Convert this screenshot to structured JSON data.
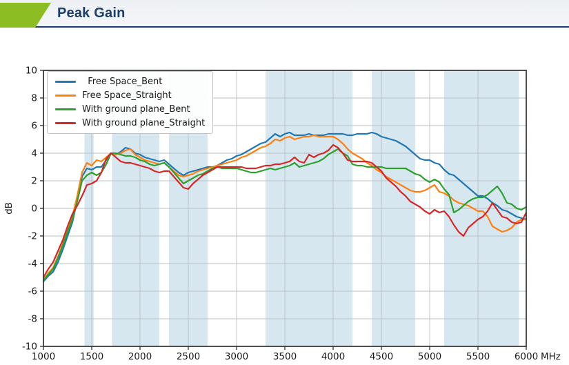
{
  "header": {
    "title": "Peak Gain",
    "accent_color": "#8cbe23",
    "title_color": "#1c3e6e"
  },
  "chart_data": {
    "type": "line",
    "title": "Peak Gain",
    "xlabel": "",
    "ylabel": "dB",
    "x_unit": "MHz",
    "xlim": [
      1000,
      6000
    ],
    "ylim": [
      -10,
      10
    ],
    "x_ticks": [
      1000,
      1500,
      2000,
      2500,
      3000,
      3500,
      4000,
      4500,
      5000,
      5500,
      6000
    ],
    "y_ticks": [
      -10,
      -8,
      -6,
      -4,
      -2,
      0,
      2,
      4,
      6,
      8,
      10
    ],
    "grid": true,
    "legend_position": "upper-left",
    "band_color": "#d7e7f0",
    "grid_color": "#b8bfc4",
    "frame_color": "#3a3a3a",
    "text_color": "#1a1a1a",
    "shaded_bands_mhz": [
      [
        1425,
        1520
      ],
      [
        1710,
        2200
      ],
      [
        2300,
        2700
      ],
      [
        3300,
        4200
      ],
      [
        4400,
        4850
      ],
      [
        5150,
        5925
      ]
    ],
    "x_start": 1000,
    "x_step": 50,
    "series": [
      {
        "name": "  Free Space_Bent",
        "color": "#1f77b4",
        "values": [
          -5.3,
          -4.9,
          -4.6,
          -3.9,
          -3.0,
          -2.0,
          -1.0,
          0.6,
          2.3,
          2.9,
          2.8,
          3.0,
          3.0,
          3.5,
          4.0,
          3.9,
          4.1,
          4.4,
          4.3,
          4.0,
          3.9,
          3.7,
          3.6,
          3.5,
          3.4,
          3.5,
          3.2,
          2.9,
          2.6,
          2.4,
          2.6,
          2.7,
          2.8,
          2.9,
          3.0,
          3.0,
          3.1,
          3.3,
          3.5,
          3.6,
          3.8,
          3.9,
          4.1,
          4.3,
          4.5,
          4.7,
          4.8,
          5.1,
          5.4,
          5.2,
          5.4,
          5.5,
          5.3,
          5.3,
          5.3,
          5.4,
          5.3,
          5.3,
          5.3,
          5.4,
          5.4,
          5.4,
          5.4,
          5.3,
          5.3,
          5.4,
          5.4,
          5.4,
          5.5,
          5.4,
          5.2,
          5.1,
          5.0,
          4.9,
          4.7,
          4.5,
          4.2,
          3.9,
          3.6,
          3.5,
          3.5,
          3.3,
          3.2,
          2.8,
          2.5,
          2.4,
          2.1,
          1.8,
          1.5,
          1.2,
          0.9,
          0.9,
          0.7,
          0.4,
          0.2,
          -0.1,
          -0.2,
          -0.4,
          -0.6,
          -0.7,
          -0.8
        ]
      },
      {
        "name": "Free Space_Straight",
        "color": "#ff7f0e",
        "values": [
          -5.2,
          -4.7,
          -4.3,
          -3.5,
          -2.6,
          -1.6,
          -0.6,
          0.9,
          2.6,
          3.3,
          3.1,
          3.5,
          3.4,
          3.7,
          4.0,
          3.9,
          4.0,
          4.2,
          4.3,
          3.9,
          3.7,
          3.5,
          3.4,
          3.3,
          3.2,
          3.3,
          3.0,
          2.7,
          2.4,
          2.3,
          2.4,
          2.5,
          2.7,
          2.8,
          2.9,
          3.0,
          3.1,
          3.2,
          3.3,
          3.4,
          3.5,
          3.7,
          3.8,
          4.0,
          4.2,
          4.4,
          4.5,
          4.7,
          5.0,
          4.9,
          5.1,
          5.2,
          5.0,
          5.1,
          5.2,
          5.2,
          5.3,
          5.2,
          5.2,
          5.2,
          5.2,
          5.0,
          4.7,
          4.3,
          4.0,
          3.8,
          3.6,
          3.3,
          3.1,
          2.8,
          2.6,
          2.3,
          2.1,
          1.9,
          1.7,
          1.5,
          1.3,
          1.2,
          1.2,
          1.3,
          1.5,
          1.7,
          1.2,
          1.1,
          0.9,
          0.6,
          0.4,
          0.3,
          0.2,
          0.0,
          -0.2,
          -0.2,
          -0.6,
          -1.3,
          -1.5,
          -1.7,
          -1.6,
          -1.4,
          -1.0,
          -0.8,
          -0.8
        ]
      },
      {
        "name": "With ground plane_Bent",
        "color": "#2ca02c",
        "values": [
          -5.2,
          -4.8,
          -4.4,
          -3.6,
          -2.7,
          -1.7,
          -0.8,
          0.5,
          2.0,
          2.4,
          2.6,
          2.4,
          2.6,
          3.2,
          4.0,
          4.0,
          3.9,
          3.8,
          3.8,
          3.7,
          3.5,
          3.4,
          3.2,
          3.1,
          3.2,
          3.3,
          3.0,
          2.6,
          2.2,
          1.8,
          2.0,
          2.2,
          2.4,
          2.5,
          2.7,
          2.9,
          3.0,
          2.9,
          2.9,
          2.9,
          2.9,
          2.8,
          2.7,
          2.6,
          2.6,
          2.7,
          2.8,
          2.9,
          2.8,
          2.9,
          3.0,
          3.1,
          3.3,
          3.0,
          3.1,
          3.2,
          3.3,
          3.4,
          3.6,
          3.9,
          4.1,
          4.3,
          4.0,
          3.8,
          3.2,
          3.1,
          3.1,
          3.0,
          3.0,
          3.0,
          3.0,
          2.9,
          2.9,
          2.9,
          2.9,
          2.9,
          2.7,
          2.5,
          2.4,
          2.1,
          1.9,
          2.1,
          1.9,
          1.4,
          1.0,
          -0.3,
          -0.1,
          0.2,
          0.5,
          0.7,
          0.8,
          0.8,
          1.0,
          1.3,
          1.6,
          1.1,
          0.4,
          0.3,
          0.0,
          -0.1,
          0.1
        ]
      },
      {
        "name": "With ground plane_Straight",
        "color": "#d62728",
        "values": [
          -5.0,
          -4.4,
          -3.9,
          -3.1,
          -2.3,
          -1.3,
          -0.4,
          0.2,
          0.9,
          1.7,
          1.8,
          2.0,
          2.6,
          3.6,
          4.0,
          3.7,
          3.4,
          3.3,
          3.3,
          3.2,
          3.1,
          3.0,
          2.9,
          2.7,
          2.6,
          2.7,
          2.7,
          2.3,
          1.9,
          1.5,
          1.4,
          1.8,
          2.1,
          2.4,
          2.6,
          2.8,
          3.0,
          3.0,
          3.0,
          3.0,
          3.0,
          3.0,
          2.9,
          2.9,
          2.9,
          3.0,
          3.1,
          3.1,
          3.2,
          3.2,
          3.3,
          3.4,
          3.7,
          3.4,
          3.3,
          3.9,
          3.7,
          3.9,
          4.0,
          4.2,
          4.6,
          4.4,
          4.0,
          3.5,
          3.4,
          3.4,
          3.4,
          3.4,
          3.3,
          3.0,
          2.7,
          2.2,
          1.9,
          1.6,
          1.2,
          0.9,
          0.5,
          0.3,
          0.1,
          -0.2,
          -0.4,
          -0.1,
          -0.3,
          -0.2,
          -0.6,
          -1.2,
          -1.7,
          -2.0,
          -1.4,
          -1.1,
          -0.8,
          -0.6,
          -0.2,
          0.4,
          -0.1,
          -0.6,
          -0.7,
          -1.0,
          -1.1,
          -1.0,
          -0.3
        ]
      }
    ]
  }
}
